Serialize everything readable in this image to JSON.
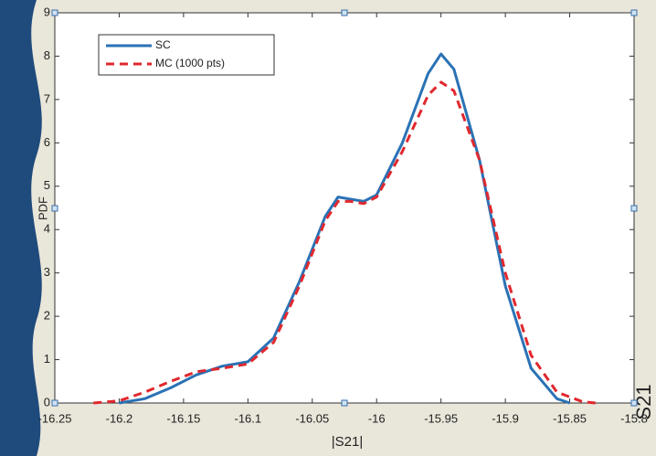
{
  "chart_data": {
    "type": "line",
    "xlabel": "|S21|",
    "ylabel": "PDF",
    "annotation": "S21",
    "xlim": [
      -16.25,
      -15.8
    ],
    "ylim": [
      0,
      9
    ],
    "xticks": [
      -16.25,
      -16.2,
      -16.15,
      -16.1,
      -16.05,
      -16,
      -15.95,
      -15.9,
      -15.85,
      -15.8
    ],
    "yticks": [
      0,
      1,
      2,
      3,
      4,
      5,
      6,
      7,
      8,
      9
    ],
    "legend": "upper-left",
    "series": [
      {
        "name": "SC",
        "color": "#2a72b5",
        "dash": false,
        "x": [
          -16.2,
          -16.18,
          -16.16,
          -16.14,
          -16.12,
          -16.1,
          -16.08,
          -16.06,
          -16.04,
          -16.03,
          -16.02,
          -16.01,
          -16.0,
          -15.98,
          -15.96,
          -15.95,
          -15.94,
          -15.92,
          -15.9,
          -15.88,
          -15.86,
          -15.85
        ],
        "values": [
          0,
          0.1,
          0.35,
          0.65,
          0.85,
          0.95,
          1.5,
          2.8,
          4.3,
          4.75,
          4.7,
          4.65,
          4.8,
          6.0,
          7.6,
          8.05,
          7.7,
          5.6,
          2.7,
          0.8,
          0.1,
          0
        ]
      },
      {
        "name": "MC (1000 pts)",
        "color": "#e0282e",
        "dash": true,
        "x": [
          -16.22,
          -16.2,
          -16.18,
          -16.16,
          -16.14,
          -16.12,
          -16.1,
          -16.08,
          -16.06,
          -16.04,
          -16.03,
          -16.02,
          -16.01,
          -16.0,
          -15.98,
          -15.96,
          -15.95,
          -15.94,
          -15.92,
          -15.9,
          -15.88,
          -15.86,
          -15.84,
          -15.83
        ],
        "values": [
          0,
          0.05,
          0.25,
          0.5,
          0.72,
          0.8,
          0.9,
          1.4,
          2.7,
          4.2,
          4.65,
          4.65,
          4.6,
          4.75,
          5.8,
          7.1,
          7.4,
          7.2,
          5.6,
          3.0,
          1.1,
          0.25,
          0.03,
          0
        ]
      }
    ]
  }
}
